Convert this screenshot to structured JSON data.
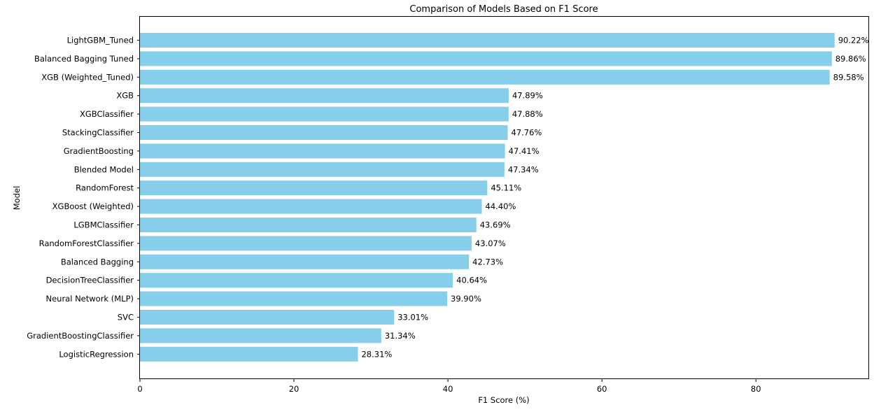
{
  "chart_data": {
    "type": "bar",
    "orientation": "horizontal",
    "title": "Comparison of Models Based on F1 Score",
    "xlabel": "F1 Score (%)",
    "ylabel": "Model",
    "xlim": [
      0,
      94.7
    ],
    "xticks": [
      0,
      20,
      40,
      60,
      80
    ],
    "grid": false,
    "bar_color": "#87CEEB",
    "categories": [
      "LightGBM_Tuned",
      "Balanced Bagging Tuned",
      "XGB (Weighted_Tuned)",
      "XGB",
      "XGBClassifier",
      "StackingClassifier",
      "GradientBoosting",
      "Blended Model",
      "RandomForest",
      "XGBoost (Weighted)",
      "LGBMClassifier",
      "RandomForestClassifier",
      "Balanced Bagging",
      "DecisionTreeClassifier",
      "Neural Network (MLP)",
      "SVC",
      "GradientBoostingClassifier",
      "LogisticRegression"
    ],
    "values": [
      90.22,
      89.86,
      89.58,
      47.89,
      47.88,
      47.76,
      47.41,
      47.34,
      45.11,
      44.4,
      43.69,
      43.07,
      42.73,
      40.64,
      39.9,
      33.01,
      31.34,
      28.31
    ],
    "value_labels": [
      "90.22%",
      "89.86%",
      "89.58%",
      "47.89%",
      "47.88%",
      "47.76%",
      "47.41%",
      "47.34%",
      "45.11%",
      "44.40%",
      "43.69%",
      "43.07%",
      "42.73%",
      "40.64%",
      "39.90%",
      "33.01%",
      "31.34%",
      "28.31%"
    ]
  }
}
